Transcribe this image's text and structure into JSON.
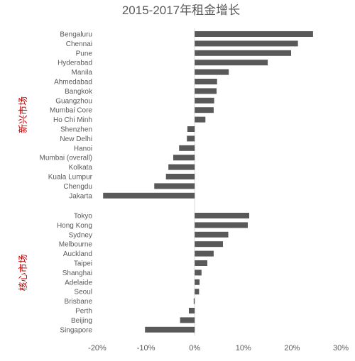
{
  "chart_data": {
    "type": "bar",
    "orientation": "horizontal",
    "title": "2015-2017年租金增长",
    "xlim": [
      -0.2,
      0.3
    ],
    "ticks": [
      "-20%",
      "-10%",
      "0%",
      "10%",
      "20%",
      "30%"
    ],
    "tick_values": [
      -0.2,
      -0.1,
      0,
      0.1,
      0.2,
      0.3
    ],
    "bar_color": "#595959",
    "group_label_color": "#c00000",
    "grid": false,
    "groups": [
      {
        "label": "新兴市场",
        "categories": [
          "Bengaluru",
          "Chennai",
          "Pune",
          "Hyderabad",
          "Manila",
          "Ahmedabad",
          "Bangkok",
          "Guangzhou",
          "Mumbai Core",
          "Ho Chi Minh",
          "Shenzhen",
          "New Delhi",
          "Hanoi",
          "Mumbai (overall)",
          "Kolkata",
          "Kuala Lumpur",
          "Chengdu",
          "Jakarta"
        ],
        "values": [
          0.243,
          0.212,
          0.198,
          0.15,
          0.07,
          0.046,
          0.045,
          0.04,
          0.039,
          0.022,
          -0.015,
          -0.016,
          -0.032,
          -0.044,
          -0.054,
          -0.059,
          -0.083,
          -0.188
        ]
      },
      {
        "label": "核心市场",
        "categories": [
          "Tokyo",
          "Hong Kong",
          "Sydney",
          "Melbourne",
          "Auckland",
          "Taipei",
          "Shanghai",
          "Adelaide",
          "Seoul",
          "Brisbane",
          "Perth",
          "Beijing",
          "Singapore"
        ],
        "values": [
          0.112,
          0.109,
          0.069,
          0.058,
          0.039,
          0.026,
          0.014,
          0.01,
          0.009,
          -0.002,
          -0.012,
          -0.03,
          -0.102
        ]
      }
    ]
  }
}
